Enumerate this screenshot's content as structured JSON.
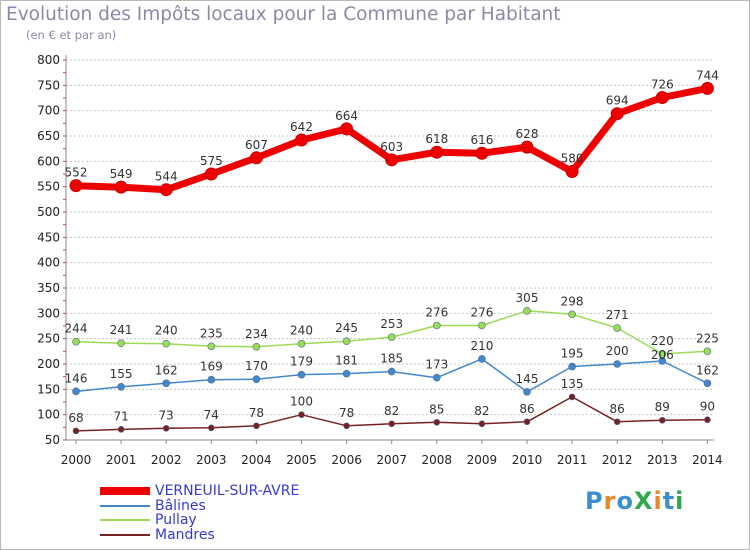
{
  "title": "Evolution des Impôts locaux pour la Commune par Habitant",
  "subtitle": "(en € et par an)",
  "logo_text": "ProXiti",
  "colors": {
    "frame": "#b8b8b8",
    "title": "#8a8aa8",
    "legend_text": "#3a3acc",
    "grid": "#c8c8c8"
  },
  "chart_data": {
    "type": "line",
    "title": "Evolution des Impôts locaux pour la Commune par Habitant",
    "subtitle": "(en € et par an)",
    "xlabel": "",
    "ylabel": "",
    "ylim": [
      50,
      800
    ],
    "yticks": [
      50,
      100,
      150,
      200,
      250,
      300,
      350,
      400,
      450,
      500,
      550,
      600,
      650,
      700,
      750,
      800
    ],
    "grid": "horizontal dashed",
    "legend_placement": "bottom-left",
    "x": [
      "2000",
      "2001",
      "2002",
      "2003",
      "2004",
      "2005",
      "2006",
      "2007",
      "2008",
      "2009",
      "2010",
      "2011",
      "2012",
      "2013",
      "2014"
    ],
    "series": [
      {
        "name": "VERNEUIL-SUR-AVRE",
        "color": "#ee0000",
        "values": [
          552,
          549,
          544,
          575,
          607,
          642,
          664,
          603,
          618,
          616,
          628,
          580,
          694,
          726,
          744
        ]
      },
      {
        "name": "Bâlines",
        "color": "#4488cc",
        "values": [
          146,
          155,
          162,
          169,
          170,
          179,
          181,
          185,
          173,
          210,
          145,
          195,
          200,
          206,
          162
        ]
      },
      {
        "name": "Pullay",
        "color": "#99dd55",
        "values": [
          244,
          241,
          240,
          235,
          234,
          240,
          245,
          253,
          276,
          276,
          305,
          298,
          271,
          220,
          225
        ]
      },
      {
        "name": "Mandres",
        "color": "#772222",
        "values": [
          68,
          71,
          73,
          74,
          78,
          100,
          78,
          82,
          85,
          82,
          86,
          135,
          86,
          89,
          90
        ]
      }
    ]
  }
}
